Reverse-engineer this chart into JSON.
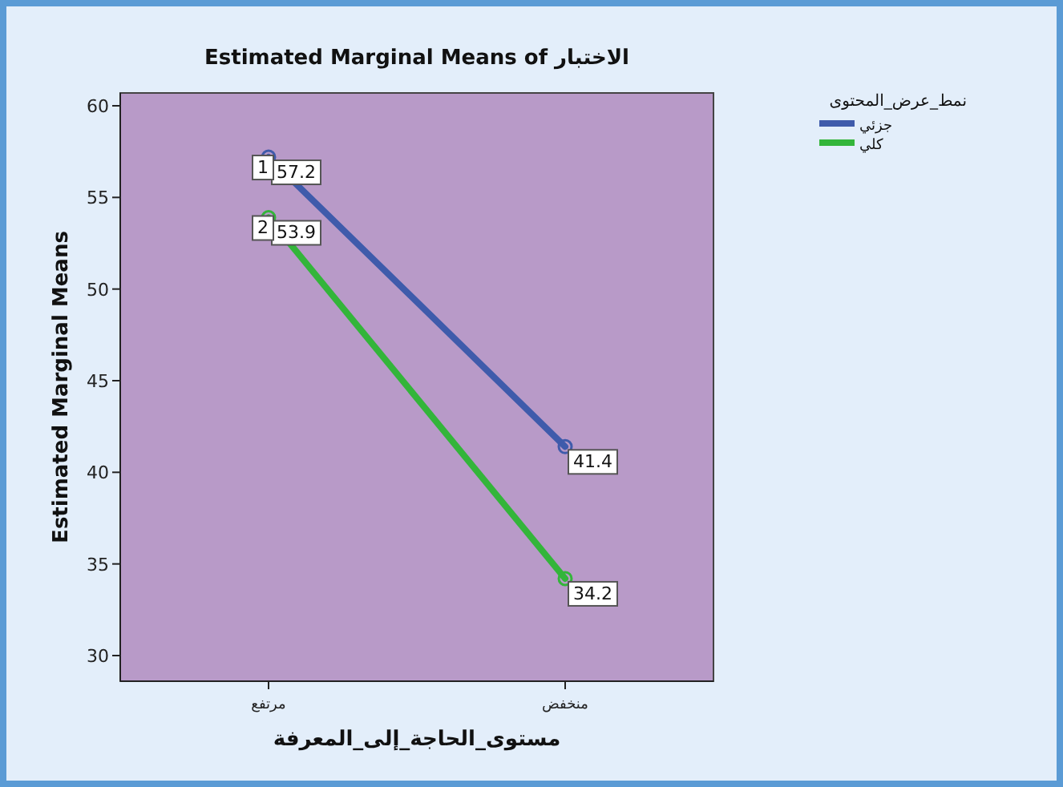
{
  "chart_data": {
    "type": "line",
    "title": "Estimated Marginal Means of الاختبار",
    "xlabel": "مستوى_الحاجة_إلى_المعرفة",
    "ylabel": "Estimated Marginal Means",
    "legend_title": "نمط_عرض_المحتوى",
    "categories": [
      "مرتفع",
      "منخفض"
    ],
    "series": [
      {
        "name": "جزئي",
        "color": "#3f5bab",
        "values": [
          57.2,
          41.4
        ]
      },
      {
        "name": "كلي",
        "color": "#33b53a",
        "values": [
          53.9,
          34.2
        ]
      }
    ],
    "ylim": [
      28.6,
      60.7
    ],
    "yticks": [
      30,
      35,
      40,
      45,
      50,
      55,
      60
    ],
    "marker": "circle",
    "data_labels": true,
    "legend": "top right",
    "grid": false,
    "annotations": [
      {
        "text": "1",
        "x": "مرتفع",
        "y": 57.2
      },
      {
        "text": "2",
        "x": "مرتفع",
        "y": 53.9
      }
    ]
  }
}
